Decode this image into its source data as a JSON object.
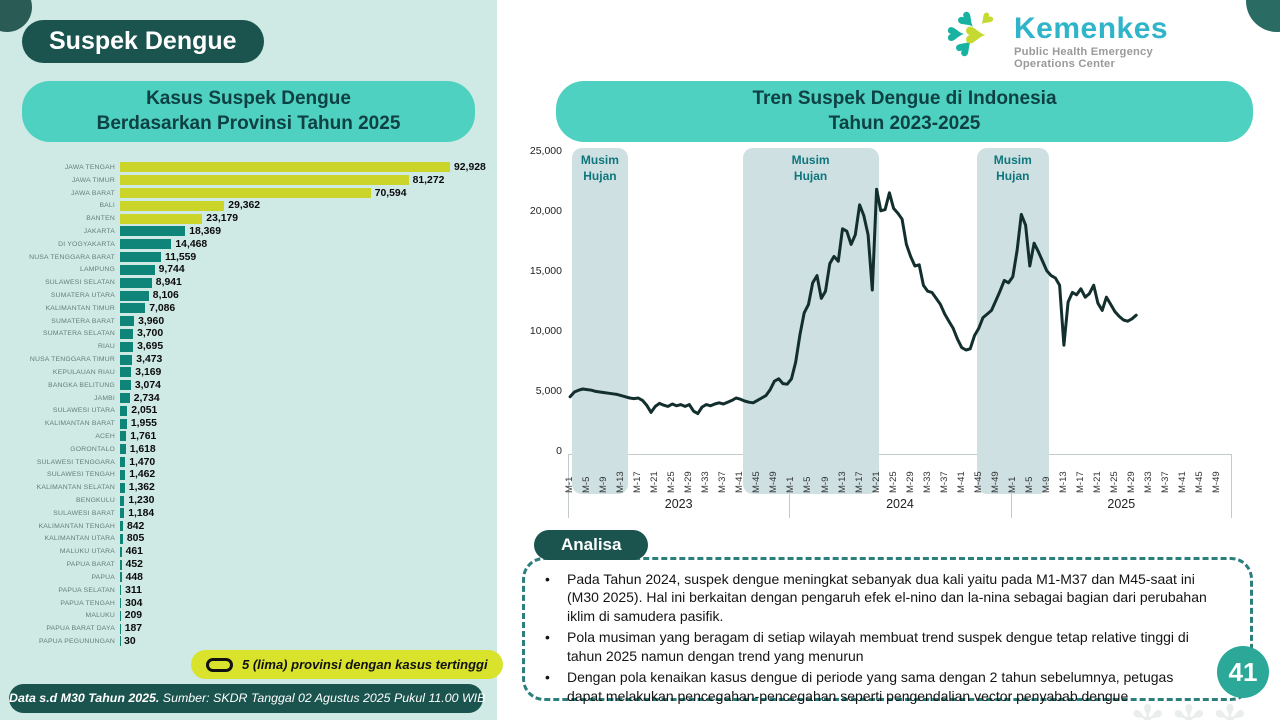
{
  "header": {
    "title": "Suspek Dengue"
  },
  "logo": {
    "brand": "Kemenkes",
    "subtitle": "Public Health Emergency Operations Center"
  },
  "bar_section": {
    "title": "Kasus Suspek Dengue\nBerdasarkan Provinsi Tahun 2025",
    "legend": "5 (lima) provinsi dengan kasus tertinggi"
  },
  "trend_section": {
    "title": "Tren Suspek Dengue di Indonesia\nTahun 2023-2025",
    "season_label": "Musim\nHujan",
    "analysis_title": "Analisa",
    "analysis_bullets": [
      "Pada Tahun 2024, suspek dengue meningkat sebanyak dua kali yaitu pada M1-M37 dan M45-saat ini (M30 2025). Hal ini berkaitan dengan pengaruh efek el-nino dan la-nina sebagai bagian dari perubahan iklim di samudera pasifik.",
      "Pola musiman yang beragam di setiap wilayah membuat trend suspek dengue tetap relative tinggi di tahun 2025 namun dengan trend yang menurun",
      "Dengan pola kenaikan kasus dengue di periode yang sama dengan 2 tahun sebelumnya, petugas dapat melakukan pencegahan-pencegahan seperti pengendalian vector penyabab dengue"
    ],
    "page_number": "41"
  },
  "footer": {
    "bold": "Data s.d M30 Tahun 2025.",
    "rest": " Sumber: SKDR Tanggal 02 Agustus 2025 Pukul 11.00 WIB"
  },
  "colors": {
    "mint_bg": "#cfe9e4",
    "dark_teal_pill": "#1b544e",
    "teal_pill": "#4ed1c1",
    "bar_highlight": "#cbd428",
    "bar_default": "#0f8579",
    "line": "#122f2e",
    "season_band": "#cfe0e3",
    "legend_yellow": "#d9e32b",
    "page_badge": "#2ba897",
    "logo_teal": "#18b2a3",
    "logo_lime": "#c6d930",
    "wordmark": "#2fb4c9"
  },
  "chart_data": [
    {
      "type": "bar",
      "title": "Kasus Suspek Dengue Berdasarkan Provinsi Tahun 2025",
      "orientation": "horizontal",
      "categories": [
        "JAWA TENGAH",
        "JAWA TIMUR",
        "JAWA BARAT",
        "BALI",
        "BANTEN",
        "JAKARTA",
        "DI YOGYAKARTA",
        "NUSA TENGGARA BARAT",
        "LAMPUNG",
        "SULAWESI SELATAN",
        "SUMATERA UTARA",
        "KALIMANTAN TIMUR",
        "SUMATERA BARAT",
        "SUMATERA SELATAN",
        "RIAU",
        "NUSA TENGGARA TIMUR",
        "KEPULAUAN RIAU",
        "BANGKA BELITUNG",
        "JAMBI",
        "SULAWESI UTARA",
        "KALIMANTAN BARAT",
        "ACEH",
        "GORONTALO",
        "SULAWESI TENGGARA",
        "SULAWESI TENGAH",
        "KALIMANTAN SELATAN",
        "BENGKULU",
        "SULAWESI BARAT",
        "KALIMANTAN TENGAH",
        "KALIMANTAN UTARA",
        "MALUKU UTARA",
        "PAPUA BARAT",
        "PAPUA",
        "PAPUA SELATAN",
        "PAPUA TENGAH",
        "MALUKU",
        "PAPUA BARAT DAYA",
        "PAPUA PEGUNUNGAN"
      ],
      "values": [
        92928,
        81272,
        70594,
        29362,
        23179,
        18369,
        14468,
        11559,
        9744,
        8941,
        8106,
        7086,
        3960,
        3700,
        3695,
        3473,
        3169,
        3074,
        2734,
        2051,
        1955,
        1761,
        1618,
        1470,
        1462,
        1362,
        1230,
        1184,
        842,
        805,
        461,
        452,
        448,
        311,
        304,
        209,
        187,
        30
      ],
      "highlight_top_n": 5,
      "xlim": [
        0,
        92928
      ]
    },
    {
      "type": "line",
      "title": "Tren Suspek Dengue di Indonesia Tahun 2023-2025",
      "ylim": [
        0,
        25000
      ],
      "y_ticks": [
        "25,000",
        "20,000",
        "15,000",
        "10,000",
        "5,000",
        "0"
      ],
      "years": [
        "2023",
        "2024",
        "2025"
      ],
      "weeks_per_year": 52,
      "x_tick_weeks": [
        1,
        5,
        9,
        13,
        17,
        21,
        25,
        29,
        33,
        37,
        41,
        45,
        49
      ],
      "x_tick_prefix": "M-",
      "season_bands": [
        {
          "label": "Musim Hujan",
          "from_week": 2,
          "to_week": 15
        },
        {
          "label": "Musim Hujan",
          "from_week": 42,
          "to_week": 74
        },
        {
          "label": "Musim Hujan",
          "from_week": 97,
          "to_week": 114
        }
      ],
      "series": [
        {
          "name": "2023",
          "values": [
            4600,
            5000,
            5150,
            5250,
            5200,
            5150,
            5050,
            5000,
            4950,
            4900,
            4850,
            4800,
            4700,
            4600,
            4500,
            4450,
            4500,
            4300,
            3900,
            3300,
            3800,
            4050,
            3900,
            3800,
            4000,
            3850,
            3950,
            3800,
            3950,
            3400,
            3200,
            3750,
            3950,
            3850,
            4000,
            4100,
            4000,
            4150,
            4300,
            4500,
            4400,
            4250,
            4150,
            4100,
            4300,
            4500,
            4700,
            5200,
            5900,
            6100,
            5700,
            5650
          ]
        },
        {
          "name": "2024",
          "values": [
            6100,
            7500,
            9800,
            11600,
            12300,
            14100,
            14700,
            12800,
            13400,
            15700,
            16300,
            15900,
            18600,
            18400,
            17300,
            18100,
            20600,
            19700,
            18100,
            13500,
            21900,
            20100,
            20200,
            21600,
            20300,
            19900,
            19400,
            17300,
            16300,
            15500,
            15600,
            13900,
            13400,
            13300,
            12800,
            12300,
            11500,
            10900,
            10300,
            9400,
            8700,
            8500,
            8600,
            9700,
            10300,
            11200,
            11500,
            11800,
            12600,
            13400,
            14300,
            14100
          ]
        },
        {
          "name": "2025",
          "values": [
            14600,
            16800,
            19800,
            18900,
            15500,
            17400,
            16700,
            15900,
            15100,
            14700,
            14500,
            13900,
            8900,
            12500,
            13300,
            13100,
            13600,
            12900,
            13200,
            13900,
            12400,
            11800,
            12900,
            12300,
            11700,
            11300,
            11000,
            10900,
            11100,
            11400
          ]
        }
      ]
    }
  ]
}
